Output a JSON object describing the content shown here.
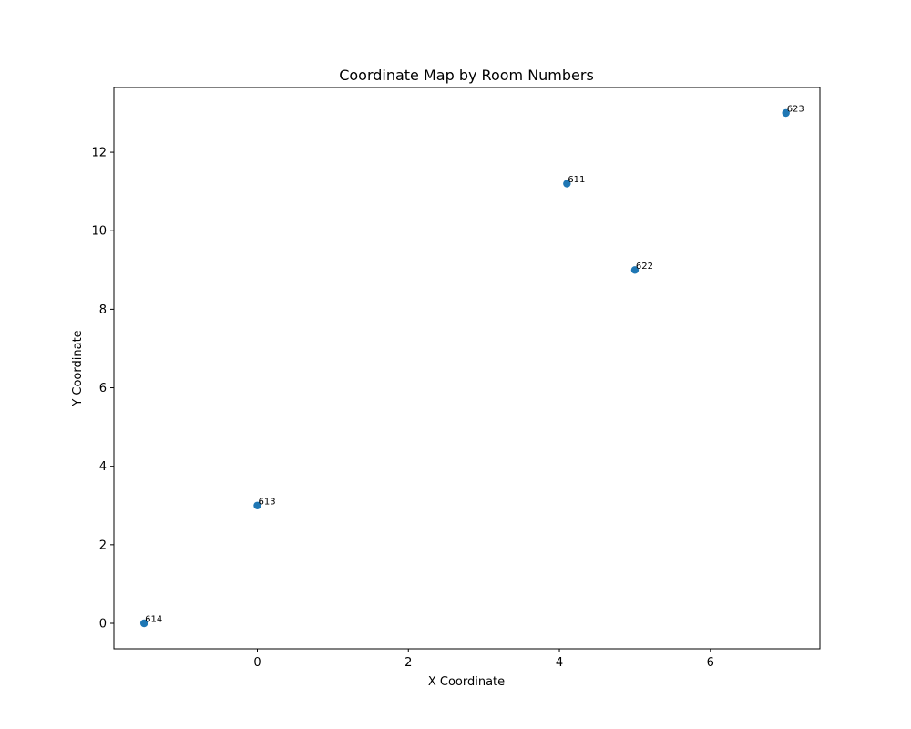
{
  "chart_data": {
    "type": "scatter",
    "title": "Coordinate Map by Room Numbers",
    "xlabel": "X Coordinate",
    "ylabel": "Y Coordinate",
    "xlim": [
      -1.9,
      7.45
    ],
    "ylim": [
      -0.65,
      13.65
    ],
    "xticks": [
      0,
      2,
      4,
      6
    ],
    "yticks": [
      0,
      2,
      4,
      6,
      8,
      10,
      12
    ],
    "grid": false,
    "points": [
      {
        "label": "623",
        "x": 7.0,
        "y": 13.0
      },
      {
        "label": "611",
        "x": 4.1,
        "y": 11.2
      },
      {
        "label": "622",
        "x": 5.0,
        "y": 9.0
      },
      {
        "label": "613",
        "x": 0.0,
        "y": 3.0
      },
      {
        "label": "614",
        "x": -1.5,
        "y": 0.0
      }
    ],
    "marker_color": "#1f77b4"
  }
}
